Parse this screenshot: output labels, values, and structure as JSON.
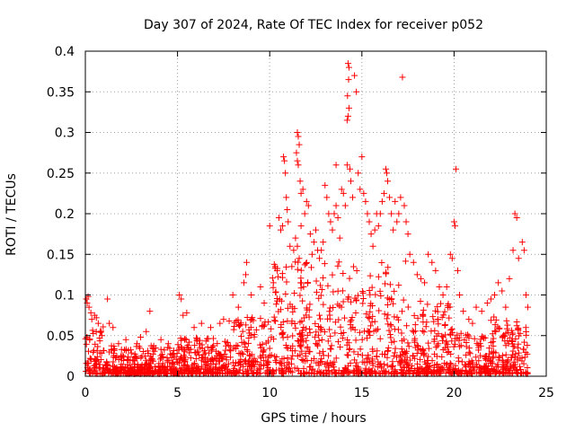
{
  "chart_data": {
    "type": "scatter",
    "title": "Day 307 of 2024, Rate Of TEC Index for receiver p052",
    "xlabel": "GPS time / hours",
    "ylabel": "ROTI / TECUs",
    "xlim": [
      0,
      25
    ],
    "ylim": [
      0,
      0.4
    ],
    "x_ticks": [
      0,
      5,
      10,
      15,
      20,
      25
    ],
    "y_ticks": [
      0,
      0.05,
      0.1,
      0.15,
      0.2,
      0.25,
      0.3,
      0.35,
      0.4
    ],
    "x_tick_labels": [
      "0",
      "5",
      "10",
      "15",
      "20",
      "25"
    ],
    "y_tick_labels": [
      "0",
      "0.05",
      "0.1",
      "0.15",
      "0.2",
      "0.25",
      "0.3",
      "0.35",
      "0.4"
    ],
    "grid": true,
    "marker": "+",
    "series_color": "#ff0000",
    "series": [
      {
        "points": [
          [
            0.05,
            0.095
          ],
          [
            0.1,
            0.09
          ],
          [
            0.15,
            0.098
          ],
          [
            0.2,
            0.085
          ],
          [
            0.3,
            0.078
          ],
          [
            0.35,
            0.07
          ],
          [
            0.5,
            0.075
          ],
          [
            0.6,
            0.072
          ],
          [
            0.7,
            0.065
          ],
          [
            0.8,
            0.055
          ],
          [
            0.9,
            0.05
          ],
          [
            1.2,
            0.095
          ],
          [
            1.3,
            0.065
          ],
          [
            1.5,
            0.06
          ],
          [
            1.8,
            0.04
          ],
          [
            2.2,
            0.045
          ],
          [
            2.8,
            0.04
          ],
          [
            3.0,
            0.048
          ],
          [
            3.3,
            0.055
          ],
          [
            3.5,
            0.08
          ],
          [
            4.1,
            0.045
          ],
          [
            4.5,
            0.04
          ],
          [
            5.1,
            0.1
          ],
          [
            5.2,
            0.095
          ],
          [
            5.3,
            0.075
          ],
          [
            5.5,
            0.078
          ],
          [
            5.9,
            0.06
          ],
          [
            6.3,
            0.065
          ],
          [
            6.8,
            0.06
          ],
          [
            7.3,
            0.065
          ],
          [
            7.5,
            0.07
          ],
          [
            7.8,
            0.068
          ],
          [
            8.0,
            0.1
          ],
          [
            8.3,
            0.085
          ],
          [
            8.6,
            0.115
          ],
          [
            8.7,
            0.125
          ],
          [
            8.75,
            0.14
          ],
          [
            9.0,
            0.1
          ],
          [
            9.5,
            0.11
          ],
          [
            9.7,
            0.09
          ],
          [
            10.0,
            0.185
          ],
          [
            10.2,
            0.115
          ],
          [
            10.3,
            0.135
          ],
          [
            10.4,
            0.13
          ],
          [
            10.5,
            0.195
          ],
          [
            10.6,
            0.18
          ],
          [
            10.7,
            0.185
          ],
          [
            10.75,
            0.27
          ],
          [
            10.8,
            0.265
          ],
          [
            10.85,
            0.25
          ],
          [
            10.9,
            0.22
          ],
          [
            10.95,
            0.205
          ],
          [
            11.0,
            0.19
          ],
          [
            11.1,
            0.16
          ],
          [
            11.2,
            0.135
          ],
          [
            11.3,
            0.155
          ],
          [
            11.4,
            0.17
          ],
          [
            11.5,
            0.16
          ],
          [
            11.6,
            0.145
          ],
          [
            11.7,
            0.185
          ],
          [
            11.8,
            0.23
          ],
          [
            11.9,
            0.2
          ],
          [
            11.5,
            0.3
          ],
          [
            11.55,
            0.295
          ],
          [
            11.6,
            0.285
          ],
          [
            11.45,
            0.275
          ],
          [
            11.5,
            0.265
          ],
          [
            11.55,
            0.26
          ],
          [
            11.65,
            0.24
          ],
          [
            11.7,
            0.225
          ],
          [
            12.0,
            0.215
          ],
          [
            12.1,
            0.21
          ],
          [
            12.2,
            0.175
          ],
          [
            12.3,
            0.15
          ],
          [
            12.4,
            0.165
          ],
          [
            12.5,
            0.18
          ],
          [
            12.6,
            0.155
          ],
          [
            12.7,
            0.145
          ],
          [
            12.8,
            0.155
          ],
          [
            12.9,
            0.165
          ],
          [
            13.0,
            0.235
          ],
          [
            13.1,
            0.22
          ],
          [
            13.2,
            0.2
          ],
          [
            13.3,
            0.19
          ],
          [
            13.4,
            0.18
          ],
          [
            13.5,
            0.2
          ],
          [
            13.6,
            0.21
          ],
          [
            13.7,
            0.195
          ],
          [
            13.8,
            0.17
          ],
          [
            13.9,
            0.23
          ],
          [
            13.6,
            0.26
          ],
          [
            14.0,
            0.225
          ],
          [
            14.1,
            0.21
          ],
          [
            14.2,
            0.26
          ],
          [
            14.25,
            0.385
          ],
          [
            14.3,
            0.38
          ],
          [
            14.28,
            0.365
          ],
          [
            14.22,
            0.345
          ],
          [
            14.3,
            0.33
          ],
          [
            14.25,
            0.32
          ],
          [
            14.2,
            0.315
          ],
          [
            14.35,
            0.255
          ],
          [
            14.4,
            0.24
          ],
          [
            14.5,
            0.22
          ],
          [
            14.6,
            0.37
          ],
          [
            14.7,
            0.35
          ],
          [
            14.8,
            0.25
          ],
          [
            14.9,
            0.23
          ],
          [
            15.0,
            0.27
          ],
          [
            15.1,
            0.225
          ],
          [
            15.2,
            0.215
          ],
          [
            15.3,
            0.2
          ],
          [
            15.4,
            0.19
          ],
          [
            15.5,
            0.175
          ],
          [
            15.6,
            0.16
          ],
          [
            15.7,
            0.18
          ],
          [
            15.8,
            0.2
          ],
          [
            15.9,
            0.185
          ],
          [
            16.0,
            0.2
          ],
          [
            16.1,
            0.215
          ],
          [
            16.2,
            0.225
          ],
          [
            16.3,
            0.255
          ],
          [
            16.35,
            0.25
          ],
          [
            16.4,
            0.24
          ],
          [
            16.5,
            0.22
          ],
          [
            16.6,
            0.2
          ],
          [
            16.7,
            0.18
          ],
          [
            16.8,
            0.215
          ],
          [
            16.9,
            0.19
          ],
          [
            17.0,
            0.2
          ],
          [
            17.1,
            0.22
          ],
          [
            17.2,
            0.368
          ],
          [
            17.3,
            0.21
          ],
          [
            17.4,
            0.19
          ],
          [
            17.5,
            0.175
          ],
          [
            17.6,
            0.15
          ],
          [
            17.8,
            0.14
          ],
          [
            18.0,
            0.125
          ],
          [
            18.2,
            0.12
          ],
          [
            18.4,
            0.115
          ],
          [
            18.6,
            0.15
          ],
          [
            18.8,
            0.14
          ],
          [
            19.0,
            0.13
          ],
          [
            19.2,
            0.11
          ],
          [
            19.4,
            0.1
          ],
          [
            19.6,
            0.11
          ],
          [
            19.8,
            0.15
          ],
          [
            19.9,
            0.145
          ],
          [
            20.0,
            0.19
          ],
          [
            20.05,
            0.185
          ],
          [
            20.1,
            0.255
          ],
          [
            20.2,
            0.13
          ],
          [
            20.3,
            0.1
          ],
          [
            20.5,
            0.08
          ],
          [
            20.8,
            0.07
          ],
          [
            21.0,
            0.065
          ],
          [
            21.2,
            0.085
          ],
          [
            21.5,
            0.08
          ],
          [
            21.8,
            0.09
          ],
          [
            22.0,
            0.095
          ],
          [
            22.2,
            0.1
          ],
          [
            22.4,
            0.115
          ],
          [
            22.6,
            0.105
          ],
          [
            22.8,
            0.085
          ],
          [
            23.0,
            0.12
          ],
          [
            23.2,
            0.155
          ],
          [
            23.3,
            0.2
          ],
          [
            23.4,
            0.195
          ],
          [
            23.5,
            0.145
          ],
          [
            23.7,
            0.165
          ],
          [
            23.8,
            0.155
          ],
          [
            23.9,
            0.1
          ],
          [
            24.0,
            0.085
          ]
        ]
      }
    ]
  }
}
